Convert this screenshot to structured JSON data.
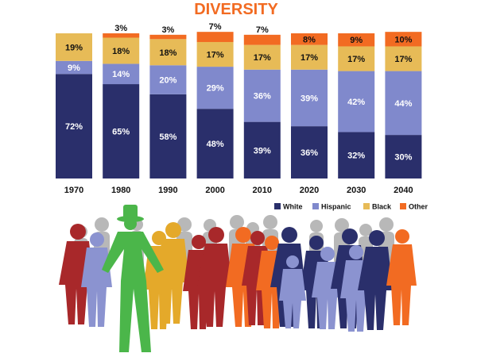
{
  "chart_data": {
    "type": "bar",
    "stacked": true,
    "title": "DIVERSITY",
    "categories": [
      "1970",
      "1980",
      "1990",
      "2000",
      "2010",
      "2020",
      "2030",
      "2040"
    ],
    "series": [
      {
        "name": "White",
        "values": [
          72,
          65,
          58,
          48,
          39,
          36,
          32,
          30
        ],
        "color": "#2a2f6b"
      },
      {
        "name": "Hispanic",
        "values": [
          9,
          14,
          20,
          29,
          36,
          39,
          42,
          44
        ],
        "color": "#8089cc"
      },
      {
        "name": "Black",
        "values": [
          19,
          18,
          18,
          17,
          17,
          17,
          17,
          17
        ],
        "color": "#e7bb57"
      },
      {
        "name": "Other",
        "values": [
          0,
          3,
          3,
          7,
          7,
          8,
          9,
          10
        ],
        "color": "#f26b22"
      }
    ],
    "data_labels": [
      [
        "72%",
        "65%",
        "58%",
        "48%",
        "39%",
        "36%",
        "32%",
        "30%"
      ],
      [
        "9%",
        "14%",
        "20%",
        "29%",
        "36%",
        "39%",
        "42%",
        "44%"
      ],
      [
        "19%",
        "18%",
        "18%",
        "17%",
        "17%",
        "17%",
        "17%",
        "17%"
      ],
      [
        "",
        "3%",
        "3%",
        "7%",
        "7%",
        "8%",
        "9%",
        "10%"
      ]
    ],
    "ylim": [
      0,
      100
    ],
    "legend_position": "bottom-right",
    "grid": false,
    "title_color": "#f26b22"
  },
  "illustration": {
    "colors": [
      "#a8282a",
      "#8b93d0",
      "#2a2f6b",
      "#f26b22",
      "#e4a92a",
      "#4bb64a",
      "#b5b5b5"
    ]
  }
}
